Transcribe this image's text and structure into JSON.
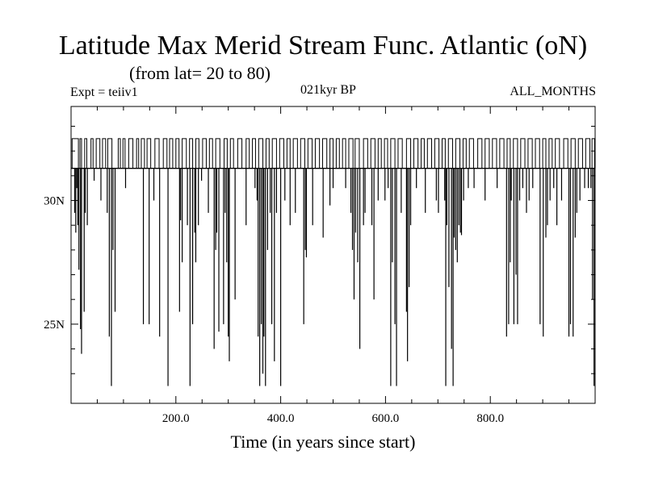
{
  "title": "Latitude Max Merid Stream Func. Atlantic (oN)",
  "subtitle": "(from lat= 20 to 80)",
  "header_left": "Expt = teiiv1",
  "header_center": "021kyr BP",
  "header_right": "ALL_MONTHS",
  "chart_data": {
    "type": "line",
    "title": "Latitude Max Merid Stream Func. Atlantic (oN)",
    "subtitle": "(from lat= 20 to 80)",
    "xlabel": "Time (in years since start)",
    "ylabel": "",
    "xlim": [
      0,
      1000
    ],
    "ylim": [
      21.8,
      33.8
    ],
    "xticks": [
      {
        "value": 200,
        "label": "200.0"
      },
      {
        "value": 400,
        "label": "400.0"
      },
      {
        "value": 600,
        "label": "600.0"
      },
      {
        "value": 800,
        "label": "800.0"
      }
    ],
    "yticks": [
      {
        "value": 25,
        "label": "25N"
      },
      {
        "value": 30,
        "label": "30N"
      }
    ],
    "baseline": 31.3,
    "high_level": 32.5,
    "high_runs": [
      [
        2,
        14
      ],
      [
        17,
        20
      ],
      [
        26,
        30
      ],
      [
        38,
        42
      ],
      [
        48,
        55
      ],
      [
        60,
        66
      ],
      [
        70,
        78
      ],
      [
        90,
        94
      ],
      [
        99,
        103
      ],
      [
        110,
        118
      ],
      [
        125,
        129
      ],
      [
        134,
        140
      ],
      [
        145,
        152
      ],
      [
        160,
        168
      ],
      [
        176,
        183
      ],
      [
        188,
        194
      ],
      [
        200,
        206
      ],
      [
        212,
        220
      ],
      [
        226,
        232
      ],
      [
        238,
        244
      ],
      [
        251,
        258
      ],
      [
        264,
        270
      ],
      [
        276,
        284
      ],
      [
        292,
        298
      ],
      [
        304,
        310
      ],
      [
        318,
        326
      ],
      [
        334,
        340
      ],
      [
        346,
        352
      ],
      [
        358,
        366
      ],
      [
        372,
        378
      ],
      [
        384,
        392
      ],
      [
        398,
        406
      ],
      [
        412,
        418
      ],
      [
        424,
        432
      ],
      [
        438,
        446
      ],
      [
        452,
        460
      ],
      [
        466,
        474
      ],
      [
        480,
        488
      ],
      [
        494,
        500
      ],
      [
        506,
        512
      ],
      [
        518,
        524
      ],
      [
        530,
        538
      ],
      [
        542,
        550
      ],
      [
        558,
        566
      ],
      [
        572,
        580
      ],
      [
        586,
        592
      ],
      [
        598,
        604
      ],
      [
        610,
        618
      ],
      [
        624,
        632
      ],
      [
        640,
        648
      ],
      [
        654,
        662
      ],
      [
        668,
        674
      ],
      [
        680,
        688
      ],
      [
        694,
        702
      ],
      [
        708,
        714
      ],
      [
        720,
        728
      ],
      [
        734,
        742
      ],
      [
        748,
        754
      ],
      [
        760,
        768
      ],
      [
        776,
        784
      ],
      [
        790,
        798
      ],
      [
        804,
        812
      ],
      [
        818,
        826
      ],
      [
        832,
        838
      ],
      [
        844,
        852
      ],
      [
        858,
        866
      ],
      [
        872,
        880
      ],
      [
        886,
        894
      ],
      [
        900,
        906
      ],
      [
        912,
        918
      ],
      [
        924,
        932
      ],
      [
        940,
        948
      ],
      [
        954,
        962
      ],
      [
        968,
        976
      ],
      [
        982,
        990
      ],
      [
        994,
        999
      ]
    ],
    "dips": [
      [
        7,
        29.5
      ],
      [
        9,
        28.7
      ],
      [
        11,
        30.5
      ],
      [
        13,
        29
      ],
      [
        15,
        27.2
      ],
      [
        18,
        24.8
      ],
      [
        20,
        23.8
      ],
      [
        25,
        25.5
      ],
      [
        27,
        29.5
      ],
      [
        31,
        29
      ],
      [
        44,
        30.8
      ],
      [
        57,
        30
      ],
      [
        69,
        29.5
      ],
      [
        73,
        24.5
      ],
      [
        77,
        22.5
      ],
      [
        80,
        28
      ],
      [
        84,
        25.5
      ],
      [
        104,
        30.5
      ],
      [
        138,
        25
      ],
      [
        149,
        25
      ],
      [
        158,
        30
      ],
      [
        169,
        24.5
      ],
      [
        185,
        22.5
      ],
      [
        207,
        25.5
      ],
      [
        209,
        29.2
      ],
      [
        212,
        27.5
      ],
      [
        222,
        29
      ],
      [
        227,
        22.5
      ],
      [
        232,
        25
      ],
      [
        236,
        28.7
      ],
      [
        238,
        27.5
      ],
      [
        243,
        29
      ],
      [
        249,
        30.8
      ],
      [
        262,
        29.5
      ],
      [
        273,
        24
      ],
      [
        276,
        28
      ],
      [
        278,
        28.7
      ],
      [
        282,
        24.7
      ],
      [
        291,
        25
      ],
      [
        294,
        29.5
      ],
      [
        297,
        27.5
      ],
      [
        300,
        24.5
      ],
      [
        302,
        23.5
      ],
      [
        313,
        26
      ],
      [
        334,
        29
      ],
      [
        351,
        30.5
      ],
      [
        355,
        30
      ],
      [
        357,
        24.5
      ],
      [
        360,
        22.5
      ],
      [
        363,
        25
      ],
      [
        366,
        23
      ],
      [
        368,
        24.5
      ],
      [
        371,
        22.5
      ],
      [
        375,
        28
      ],
      [
        380,
        29.5
      ],
      [
        383,
        25
      ],
      [
        388,
        23.5
      ],
      [
        392,
        29.5
      ],
      [
        400,
        22.5
      ],
      [
        408,
        30
      ],
      [
        418,
        29
      ],
      [
        428,
        29.5
      ],
      [
        444,
        25
      ],
      [
        447,
        28
      ],
      [
        449,
        27.7
      ],
      [
        461,
        29
      ],
      [
        481,
        28.5
      ],
      [
        494,
        29.8
      ],
      [
        500,
        30.5
      ],
      [
        524,
        30.5
      ],
      [
        534,
        29.5
      ],
      [
        537,
        28
      ],
      [
        540,
        26
      ],
      [
        543,
        28.7
      ],
      [
        547,
        27.5
      ],
      [
        551,
        24
      ],
      [
        558,
        29
      ],
      [
        561,
        29.5
      ],
      [
        574,
        29
      ],
      [
        578,
        26
      ],
      [
        586,
        30
      ],
      [
        599,
        30
      ],
      [
        605,
        30.5
      ],
      [
        610,
        22.5
      ],
      [
        613,
        27.5
      ],
      [
        618,
        25
      ],
      [
        621,
        22.5
      ],
      [
        630,
        29.5
      ],
      [
        640,
        25.5
      ],
      [
        642,
        23.5
      ],
      [
        645,
        26.5
      ],
      [
        648,
        29
      ],
      [
        659,
        30.5
      ],
      [
        676,
        29.5
      ],
      [
        697,
        30
      ],
      [
        701,
        29.5
      ],
      [
        713,
        30
      ],
      [
        715,
        22.5
      ],
      [
        717,
        29
      ],
      [
        721,
        26.5
      ],
      [
        726,
        24
      ],
      [
        729,
        22.5
      ],
      [
        731,
        28.5
      ],
      [
        734,
        28
      ],
      [
        737,
        27.5
      ],
      [
        740,
        29
      ],
      [
        743,
        28.7
      ],
      [
        745,
        28.6
      ],
      [
        749,
        30
      ],
      [
        758,
        30.5
      ],
      [
        769,
        30.5
      ],
      [
        790,
        30
      ],
      [
        813,
        30.5
      ],
      [
        831,
        24.5
      ],
      [
        835,
        25
      ],
      [
        838,
        27.5
      ],
      [
        840,
        30
      ],
      [
        845,
        25
      ],
      [
        849,
        27
      ],
      [
        852,
        25
      ],
      [
        856,
        30
      ],
      [
        862,
        30.5
      ],
      [
        869,
        29.5
      ],
      [
        874,
        30
      ],
      [
        881,
        30.5
      ],
      [
        895,
        25
      ],
      [
        901,
        24.5
      ],
      [
        906,
        28.5
      ],
      [
        909,
        29
      ],
      [
        914,
        30
      ],
      [
        921,
        30.5
      ],
      [
        927,
        29
      ],
      [
        936,
        30
      ],
      [
        950,
        24.5
      ],
      [
        953,
        25
      ],
      [
        958,
        24.5
      ],
      [
        962,
        28.5
      ],
      [
        965,
        29.5
      ],
      [
        971,
        30
      ],
      [
        980,
        30.5
      ],
      [
        987,
        30.5
      ],
      [
        992,
        30.5
      ],
      [
        995,
        26
      ],
      [
        998,
        22.5
      ]
    ]
  }
}
